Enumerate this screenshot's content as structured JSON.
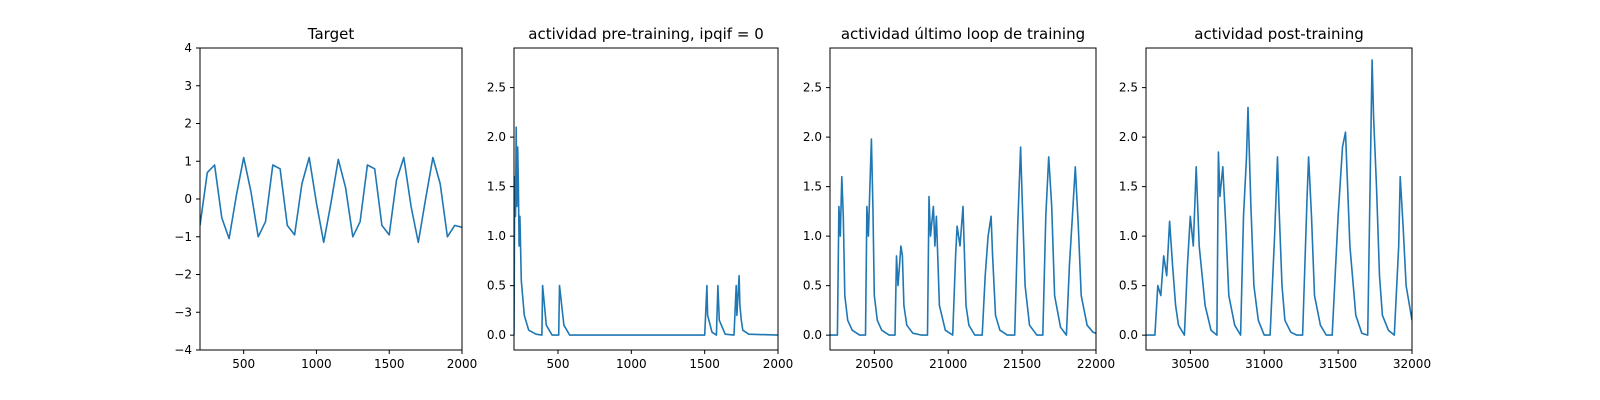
{
  "chart_data": [
    {
      "type": "line",
      "title": "Target",
      "xlim": [
        200,
        2000
      ],
      "ylim": [
        -4,
        4
      ],
      "xticks": [
        "500",
        "1000",
        "1500",
        "2000"
      ],
      "yticks": [
        "−4",
        "−3",
        "−2",
        "−1",
        "0",
        "1",
        "2",
        "3",
        "4"
      ],
      "series": [
        {
          "color": "#1f77b4",
          "x": [
            200,
            250,
            300,
            350,
            400,
            450,
            500,
            550,
            600,
            650,
            700,
            750,
            800,
            850,
            900,
            950,
            1000,
            1050,
            1100,
            1150,
            1200,
            1250,
            1300,
            1350,
            1400,
            1450,
            1500,
            1550,
            1600,
            1650,
            1700,
            1750,
            1800,
            1850,
            1900,
            1950,
            2000
          ],
          "y": [
            -0.7,
            0.7,
            0.9,
            -0.5,
            -1.05,
            0.1,
            1.1,
            0.2,
            -1.0,
            -0.6,
            0.9,
            0.8,
            -0.7,
            -0.95,
            0.4,
            1.1,
            -0.1,
            -1.15,
            -0.1,
            1.05,
            0.3,
            -1.0,
            -0.6,
            0.9,
            0.8,
            -0.7,
            -0.95,
            0.5,
            1.1,
            -0.2,
            -1.15,
            0.0,
            1.1,
            0.4,
            -1.0,
            -0.7,
            -0.75
          ]
        }
      ]
    },
    {
      "type": "line",
      "title": "actividad pre-training, ipqif = 0",
      "xlim": [
        200,
        2000
      ],
      "ylim": [
        -0.15,
        2.9
      ],
      "xticks": [
        "500",
        "1000",
        "1500",
        "2000"
      ],
      "yticks": [
        "0.0",
        "0.5",
        "1.0",
        "1.5",
        "2.0",
        "2.5"
      ],
      "series": [
        {
          "color": "#1f77b4",
          "x": [
            200,
            205,
            210,
            215,
            220,
            225,
            230,
            235,
            240,
            250,
            270,
            300,
            350,
            390,
            395,
            420,
            460,
            505,
            510,
            540,
            580,
            700,
            1000,
            1500,
            1515,
            1520,
            1550,
            1580,
            1590,
            1600,
            1640,
            1700,
            1715,
            1720,
            1735,
            1740,
            1750,
            1760,
            1800,
            2000
          ],
          "y": [
            0.0,
            1.6,
            1.2,
            2.1,
            1.3,
            1.9,
            1.5,
            0.9,
            1.2,
            0.55,
            0.2,
            0.05,
            0.01,
            0.0,
            0.5,
            0.1,
            0.0,
            0.0,
            0.5,
            0.1,
            0.0,
            0.0,
            0.0,
            0.0,
            0.5,
            0.2,
            0.03,
            0.0,
            0.5,
            0.15,
            0.01,
            0.0,
            0.5,
            0.2,
            0.6,
            0.3,
            0.15,
            0.05,
            0.01,
            0.0
          ]
        }
      ]
    },
    {
      "type": "line",
      "title": "actividad último loop de training",
      "xlim": [
        20200,
        22000
      ],
      "ylim": [
        -0.15,
        2.9
      ],
      "xticks": [
        "20500",
        "21000",
        "21500",
        "22000"
      ],
      "yticks": [
        "0.0",
        "0.5",
        "1.0",
        "1.5",
        "2.0",
        "2.5"
      ],
      "series": [
        {
          "color": "#1f77b4",
          "x": [
            20200,
            20250,
            20260,
            20270,
            20280,
            20290,
            20300,
            20320,
            20350,
            20400,
            20440,
            20450,
            20460,
            20470,
            20480,
            20490,
            20500,
            20520,
            20550,
            20600,
            20640,
            20650,
            20660,
            20670,
            20680,
            20690,
            20700,
            20720,
            20760,
            20820,
            20860,
            20870,
            20880,
            20900,
            20910,
            20920,
            20940,
            20980,
            21030,
            21050,
            21060,
            21080,
            21100,
            21110,
            21120,
            21140,
            21180,
            21230,
            21250,
            21270,
            21290,
            21300,
            21320,
            21350,
            21400,
            21450,
            21470,
            21490,
            21500,
            21520,
            21550,
            21600,
            21640,
            21660,
            21680,
            21700,
            21720,
            21760,
            21800,
            21820,
            21840,
            21860,
            21880,
            21900,
            21940,
            21980,
            22000
          ],
          "y": [
            0.0,
            0.0,
            1.3,
            1.0,
            1.6,
            1.2,
            0.4,
            0.15,
            0.05,
            0.0,
            0.0,
            1.3,
            1.0,
            1.5,
            1.98,
            1.3,
            0.4,
            0.15,
            0.05,
            0.0,
            0.0,
            0.8,
            0.5,
            0.7,
            0.9,
            0.8,
            0.3,
            0.1,
            0.02,
            0.0,
            0.0,
            1.4,
            1.0,
            1.3,
            0.9,
            1.2,
            0.3,
            0.05,
            0.0,
            0.8,
            1.1,
            0.9,
            1.3,
            0.8,
            0.3,
            0.1,
            0.0,
            0.0,
            0.6,
            1.0,
            1.2,
            0.8,
            0.2,
            0.05,
            0.0,
            0.0,
            1.1,
            1.9,
            1.4,
            0.5,
            0.1,
            0.0,
            0.0,
            1.2,
            1.8,
            1.3,
            0.4,
            0.08,
            0.0,
            0.7,
            1.2,
            1.7,
            1.1,
            0.4,
            0.1,
            0.03,
            0.02
          ]
        }
      ]
    },
    {
      "type": "line",
      "title": "actividad post-training",
      "xlim": [
        30200,
        32000
      ],
      "ylim": [
        -0.15,
        2.9
      ],
      "xticks": [
        "30500",
        "31000",
        "31500",
        "32000"
      ],
      "yticks": [
        "0.0",
        "0.5",
        "1.0",
        "1.5",
        "2.0",
        "2.5"
      ],
      "series": [
        {
          "color": "#1f77b4",
          "x": [
            30200,
            30260,
            30280,
            30300,
            30320,
            30340,
            30360,
            30380,
            30400,
            30420,
            30460,
            30480,
            30500,
            30520,
            30540,
            30560,
            30600,
            30640,
            30680,
            30690,
            30700,
            30720,
            30740,
            30760,
            30800,
            30840,
            30860,
            30880,
            30890,
            30910,
            30930,
            30960,
            31000,
            31040,
            31070,
            31090,
            31100,
            31120,
            31140,
            31180,
            31220,
            31260,
            31290,
            31300,
            31320,
            31340,
            31380,
            31420,
            31460,
            31500,
            31530,
            31550,
            31580,
            31620,
            31660,
            31700,
            31730,
            31740,
            31760,
            31780,
            31800,
            31840,
            31880,
            31910,
            31920,
            31940,
            31960,
            32000
          ],
          "y": [
            0.0,
            0.0,
            0.5,
            0.4,
            0.8,
            0.6,
            1.15,
            0.7,
            0.3,
            0.1,
            0.0,
            0.7,
            1.2,
            0.9,
            1.7,
            0.9,
            0.3,
            0.05,
            0.0,
            1.85,
            1.4,
            1.7,
            1.1,
            0.4,
            0.1,
            0.0,
            1.2,
            1.8,
            2.3,
            1.3,
            0.5,
            0.15,
            0.0,
            0.0,
            1.0,
            1.8,
            1.3,
            0.5,
            0.15,
            0.03,
            0.0,
            0.0,
            1.4,
            1.8,
            1.2,
            0.4,
            0.1,
            0.0,
            0.0,
            1.2,
            1.9,
            2.05,
            0.9,
            0.2,
            0.02,
            0.0,
            2.78,
            2.2,
            1.5,
            0.6,
            0.2,
            0.05,
            0.0,
            0.9,
            1.6,
            1.1,
            0.5,
            0.15
          ]
        }
      ]
    }
  ]
}
